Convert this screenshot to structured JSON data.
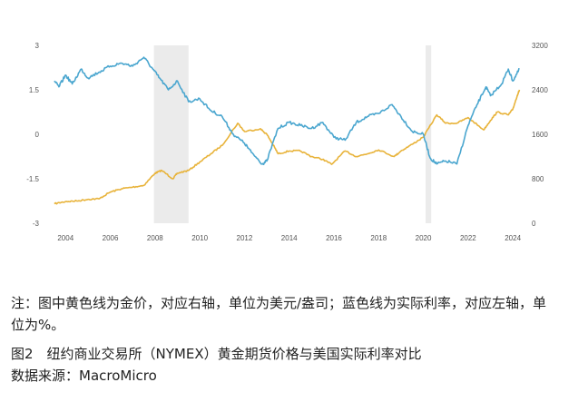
{
  "chart_data": {
    "type": "line",
    "x_ticks": [
      "2004",
      "2006",
      "2008",
      "2010",
      "2012",
      "2014",
      "2016",
      "2018",
      "2020",
      "2022",
      "2024"
    ],
    "y_left_ticks": [
      "3",
      "1.5",
      "0",
      "-1.5",
      "-3"
    ],
    "y_right_ticks": [
      "3200",
      "2400",
      "1600",
      "800",
      "0"
    ],
    "y_left_range": [
      -3,
      3
    ],
    "y_right_range": [
      0,
      3200
    ],
    "x_range": [
      2003.3,
      2024.4
    ],
    "shaded_periods": [
      [
        2007.95,
        2009.5
      ],
      [
        2020.1,
        2020.35
      ]
    ],
    "grid": false,
    "series": [
      {
        "axis": "right",
        "color": "#e8b33a",
        "points": [
          [
            2003.5,
            350
          ],
          [
            2004,
            390
          ],
          [
            2004.5,
            400
          ],
          [
            2005,
            430
          ],
          [
            2005.5,
            440
          ],
          [
            2006,
            560
          ],
          [
            2006.5,
            620
          ],
          [
            2007,
            650
          ],
          [
            2007.5,
            680
          ],
          [
            2008,
            900
          ],
          [
            2008.3,
            950
          ],
          [
            2008.8,
            800
          ],
          [
            2009,
            900
          ],
          [
            2009.5,
            950
          ],
          [
            2010,
            1100
          ],
          [
            2010.5,
            1250
          ],
          [
            2011,
            1400
          ],
          [
            2011.7,
            1800
          ],
          [
            2012,
            1650
          ],
          [
            2012.7,
            1700
          ],
          [
            2013,
            1600
          ],
          [
            2013.3,
            1400
          ],
          [
            2013.5,
            1250
          ],
          [
            2014,
            1300
          ],
          [
            2014.5,
            1300
          ],
          [
            2015,
            1200
          ],
          [
            2015.5,
            1150
          ],
          [
            2015.9,
            1060
          ],
          [
            2016.5,
            1300
          ],
          [
            2017,
            1200
          ],
          [
            2017.5,
            1250
          ],
          [
            2018,
            1320
          ],
          [
            2018.7,
            1200
          ],
          [
            2019,
            1300
          ],
          [
            2019.5,
            1420
          ],
          [
            2020,
            1550
          ],
          [
            2020.6,
            1950
          ],
          [
            2021,
            1800
          ],
          [
            2021.5,
            1800
          ],
          [
            2022,
            1900
          ],
          [
            2022.7,
            1680
          ],
          [
            2023,
            1850
          ],
          [
            2023.3,
            2000
          ],
          [
            2023.8,
            1950
          ],
          [
            2024,
            2050
          ],
          [
            2024.2,
            2300
          ],
          [
            2024.3,
            2400
          ]
        ]
      },
      {
        "axis": "left",
        "color": "#4aa6cf",
        "points": [
          [
            2003.5,
            1.8
          ],
          [
            2003.7,
            1.6
          ],
          [
            2004,
            2.0
          ],
          [
            2004.3,
            1.7
          ],
          [
            2004.7,
            2.2
          ],
          [
            2005,
            1.9
          ],
          [
            2005.5,
            2.1
          ],
          [
            2006,
            2.3
          ],
          [
            2006.5,
            2.4
          ],
          [
            2007,
            2.3
          ],
          [
            2007.5,
            2.6
          ],
          [
            2007.9,
            2.2
          ],
          [
            2008.2,
            1.9
          ],
          [
            2008.6,
            1.5
          ],
          [
            2009,
            1.8
          ],
          [
            2009.5,
            1.1
          ],
          [
            2010,
            1.2
          ],
          [
            2010.5,
            0.8
          ],
          [
            2011,
            0.6
          ],
          [
            2011.5,
            0.0
          ],
          [
            2012,
            -0.3
          ],
          [
            2012.3,
            -0.6
          ],
          [
            2012.8,
            -1.0
          ],
          [
            2013,
            -0.9
          ],
          [
            2013.5,
            0.2
          ],
          [
            2014,
            0.4
          ],
          [
            2014.5,
            0.3
          ],
          [
            2015,
            0.2
          ],
          [
            2015.5,
            0.4
          ],
          [
            2016,
            -0.1
          ],
          [
            2016.5,
            -0.2
          ],
          [
            2017,
            0.4
          ],
          [
            2017.5,
            0.6
          ],
          [
            2018,
            0.7
          ],
          [
            2018.6,
            1.0
          ],
          [
            2019,
            0.6
          ],
          [
            2019.5,
            0.1
          ],
          [
            2020,
            0.0
          ],
          [
            2020.3,
            -0.8
          ],
          [
            2020.6,
            -1.0
          ],
          [
            2021,
            -0.9
          ],
          [
            2021.5,
            -1.0
          ],
          [
            2022,
            0.3
          ],
          [
            2022.4,
            1.0
          ],
          [
            2022.8,
            1.6
          ],
          [
            2023,
            1.3
          ],
          [
            2023.5,
            1.7
          ],
          [
            2023.8,
            2.2
          ],
          [
            2024,
            1.8
          ],
          [
            2024.3,
            2.2
          ]
        ]
      }
    ]
  },
  "caption": {
    "note": "注：图中黄色线为金价，对应右轴，单位为美元/盎司；蓝色线为实际利率，对应左轴，单位为%。",
    "figure_title": "图2　纽约商业交易所（NYMEX）黄金期货价格与美国实际利率对比",
    "source": "数据来源：MacroMicro"
  }
}
